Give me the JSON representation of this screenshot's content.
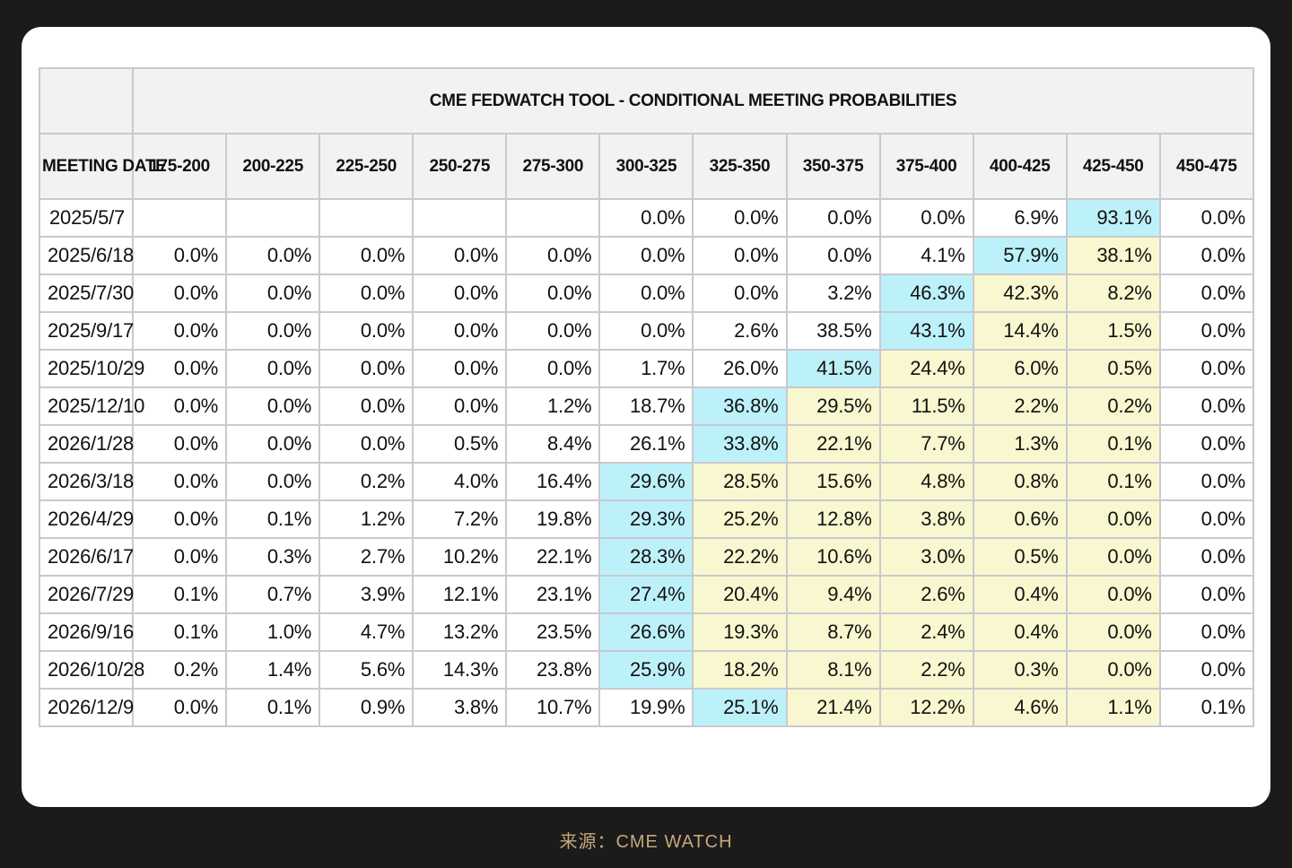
{
  "chart_data": {
    "type": "table",
    "title": "CME FEDWATCH TOOL - CONDITIONAL MEETING PROBABILITIES",
    "row_header": "MEETING DATE",
    "columns": [
      "175-200",
      "200-225",
      "225-250",
      "250-275",
      "275-300",
      "300-325",
      "325-350",
      "350-375",
      "375-400",
      "400-425",
      "425-450",
      "450-475"
    ],
    "current_range": "425-450",
    "rows": [
      {
        "date": "2025/5/7",
        "values": [
          "",
          "",
          "",
          "",
          "",
          "0.0%",
          "0.0%",
          "0.0%",
          "0.0%",
          "6.9%",
          "93.1%",
          "0.0%"
        ]
      },
      {
        "date": "2025/6/18",
        "values": [
          "0.0%",
          "0.0%",
          "0.0%",
          "0.0%",
          "0.0%",
          "0.0%",
          "0.0%",
          "0.0%",
          "4.1%",
          "57.9%",
          "38.1%",
          "0.0%"
        ]
      },
      {
        "date": "2025/7/30",
        "values": [
          "0.0%",
          "0.0%",
          "0.0%",
          "0.0%",
          "0.0%",
          "0.0%",
          "0.0%",
          "3.2%",
          "46.3%",
          "42.3%",
          "8.2%",
          "0.0%"
        ]
      },
      {
        "date": "2025/9/17",
        "values": [
          "0.0%",
          "0.0%",
          "0.0%",
          "0.0%",
          "0.0%",
          "0.0%",
          "2.6%",
          "38.5%",
          "43.1%",
          "14.4%",
          "1.5%",
          "0.0%"
        ]
      },
      {
        "date": "2025/10/29",
        "values": [
          "0.0%",
          "0.0%",
          "0.0%",
          "0.0%",
          "0.0%",
          "1.7%",
          "26.0%",
          "41.5%",
          "24.4%",
          "6.0%",
          "0.5%",
          "0.0%"
        ]
      },
      {
        "date": "2025/12/10",
        "values": [
          "0.0%",
          "0.0%",
          "0.0%",
          "0.0%",
          "1.2%",
          "18.7%",
          "36.8%",
          "29.5%",
          "11.5%",
          "2.2%",
          "0.2%",
          "0.0%"
        ]
      },
      {
        "date": "2026/1/28",
        "values": [
          "0.0%",
          "0.0%",
          "0.0%",
          "0.5%",
          "8.4%",
          "26.1%",
          "33.8%",
          "22.1%",
          "7.7%",
          "1.3%",
          "0.1%",
          "0.0%"
        ]
      },
      {
        "date": "2026/3/18",
        "values": [
          "0.0%",
          "0.0%",
          "0.2%",
          "4.0%",
          "16.4%",
          "29.6%",
          "28.5%",
          "15.6%",
          "4.8%",
          "0.8%",
          "0.1%",
          "0.0%"
        ]
      },
      {
        "date": "2026/4/29",
        "values": [
          "0.0%",
          "0.1%",
          "1.2%",
          "7.2%",
          "19.8%",
          "29.3%",
          "25.2%",
          "12.8%",
          "3.8%",
          "0.6%",
          "0.0%",
          "0.0%"
        ]
      },
      {
        "date": "2026/6/17",
        "values": [
          "0.0%",
          "0.3%",
          "2.7%",
          "10.2%",
          "22.1%",
          "28.3%",
          "22.2%",
          "10.6%",
          "3.0%",
          "0.5%",
          "0.0%",
          "0.0%"
        ]
      },
      {
        "date": "2026/7/29",
        "values": [
          "0.1%",
          "0.7%",
          "3.9%",
          "12.1%",
          "23.1%",
          "27.4%",
          "20.4%",
          "9.4%",
          "2.6%",
          "0.4%",
          "0.0%",
          "0.0%"
        ]
      },
      {
        "date": "2026/9/16",
        "values": [
          "0.1%",
          "1.0%",
          "4.7%",
          "13.2%",
          "23.5%",
          "26.6%",
          "19.3%",
          "8.7%",
          "2.4%",
          "0.4%",
          "0.0%",
          "0.0%"
        ]
      },
      {
        "date": "2026/10/28",
        "values": [
          "0.2%",
          "1.4%",
          "5.6%",
          "14.3%",
          "23.8%",
          "25.9%",
          "18.2%",
          "8.1%",
          "2.2%",
          "0.3%",
          "0.0%",
          "0.0%"
        ]
      },
      {
        "date": "2026/12/9",
        "values": [
          "0.0%",
          "0.1%",
          "0.9%",
          "3.8%",
          "10.7%",
          "19.9%",
          "25.1%",
          "21.4%",
          "12.2%",
          "4.6%",
          "1.1%",
          "0.1%"
        ]
      }
    ],
    "colors": {
      "max_cell": "#bdf1fa",
      "between_cell": "#f9f7cf",
      "header_bg": "#f2f2f2",
      "border": "#c9c9cf"
    }
  },
  "footer": {
    "source": "来源：CME WATCH",
    "color": "#c9a67a"
  }
}
